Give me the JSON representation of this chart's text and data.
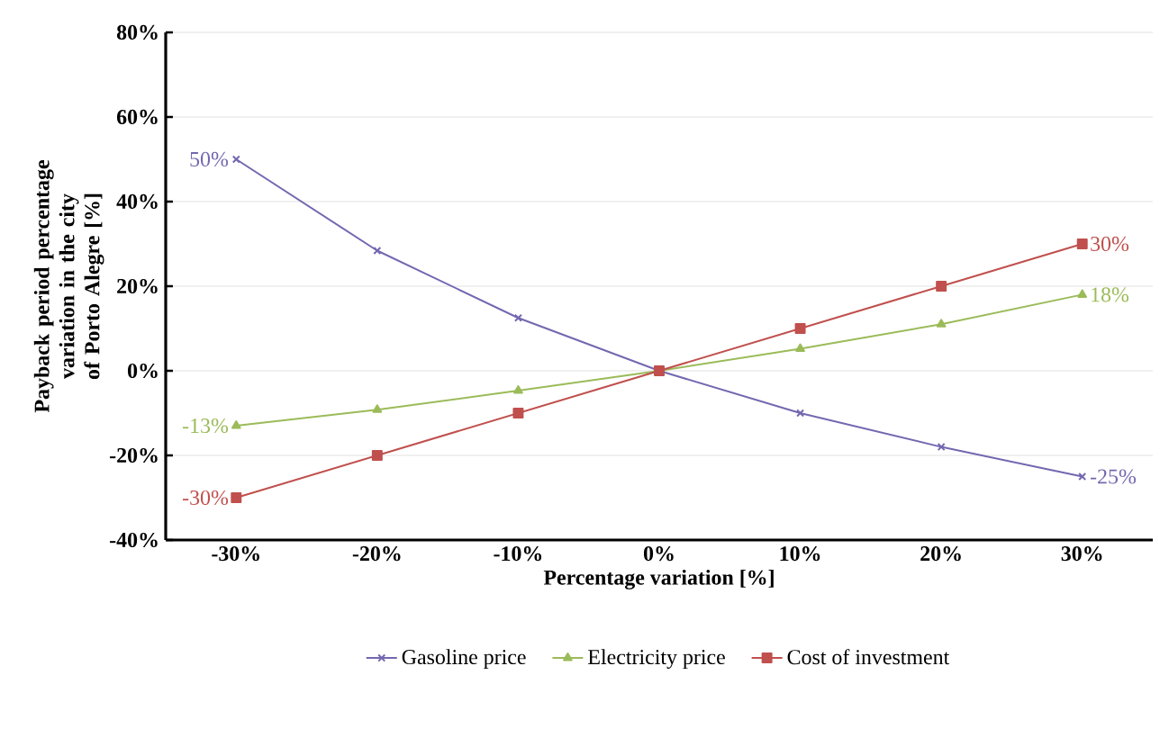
{
  "chart_data": {
    "type": "line",
    "xlabel": "Percentage variation  [%]",
    "ylabel": "Payback period percentage variation in the city of Porto Alegre  [%]",
    "categories": [
      "-30%",
      "-20%",
      "-10%",
      "0%",
      "10%",
      "20%",
      "30%"
    ],
    "series": [
      {
        "name": "Gasoline price",
        "color": "#7467b0",
        "marker": "cross",
        "values": [
          50,
          28.4,
          12.5,
          0,
          -10,
          -18,
          -25
        ],
        "value_labels": [
          "50%",
          null,
          null,
          null,
          null,
          null,
          "-25%"
        ]
      },
      {
        "name": "Electricity price",
        "color": "#9bbb59",
        "marker": "triangle",
        "values": [
          -13,
          -9.2,
          -4.7,
          0,
          5.2,
          11,
          18
        ],
        "value_labels": [
          "-13%",
          null,
          null,
          null,
          null,
          null,
          "18%"
        ]
      },
      {
        "name": "Cost of investment",
        "color": "#c0504d",
        "marker": "square",
        "values": [
          -30,
          -20,
          -10,
          0,
          10,
          20,
          30
        ],
        "value_labels": [
          "-30%",
          null,
          null,
          null,
          null,
          null,
          "30%"
        ]
      }
    ],
    "ylim": [
      -40,
      80
    ],
    "yticks": [
      {
        "value": -40,
        "label": "-40%"
      },
      {
        "value": -20,
        "label": "-20%"
      },
      {
        "value": 0,
        "label": "0%"
      },
      {
        "value": 20,
        "label": "20%"
      },
      {
        "value": 40,
        "label": "40%"
      },
      {
        "value": 60,
        "label": "60%"
      },
      {
        "value": 80,
        "label": "80%"
      }
    ],
    "grid": "y",
    "legend": "bottom",
    "line_style": "solid"
  }
}
